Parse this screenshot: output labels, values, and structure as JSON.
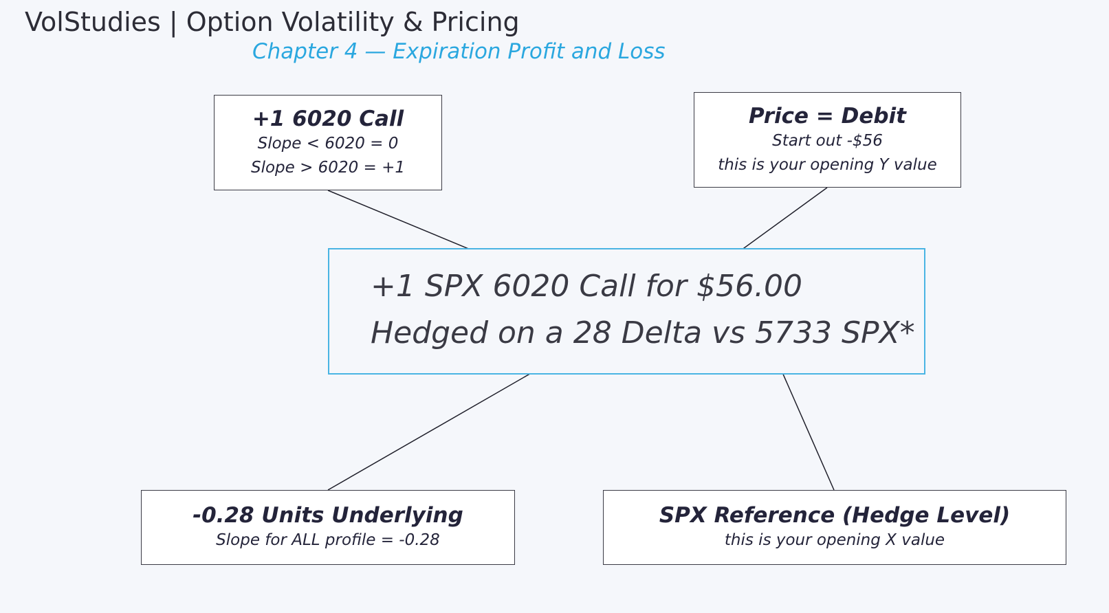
{
  "header": {
    "title": "VolStudies | Option Volatility & Pricing",
    "chapter": "Chapter 4 — Expiration Profit and Loss"
  },
  "center": {
    "line1": "+1 SPX 6020 Call for $56.00",
    "line2": "Hedged on a 28 Delta vs 5733 SPX*"
  },
  "callouts": {
    "call": {
      "heading": "+1 6020 Call",
      "line1": "Slope < 6020 = 0",
      "line2": "Slope > 6020 = +1"
    },
    "debit": {
      "heading": "Price = Debit",
      "line1": "Start out -$56",
      "line2": "this is your opening Y value"
    },
    "units": {
      "heading": "-0.28 Units Underlying",
      "line1": "Slope for ALL profile = -0.28"
    },
    "spx": {
      "heading": "SPX Reference (Hedge Level)",
      "line1": "this is your opening X value"
    }
  },
  "colors": {
    "accent": "#2aa7df",
    "center_border": "#49b4e3",
    "text": "#24243a",
    "background": "#f5f7fb"
  }
}
